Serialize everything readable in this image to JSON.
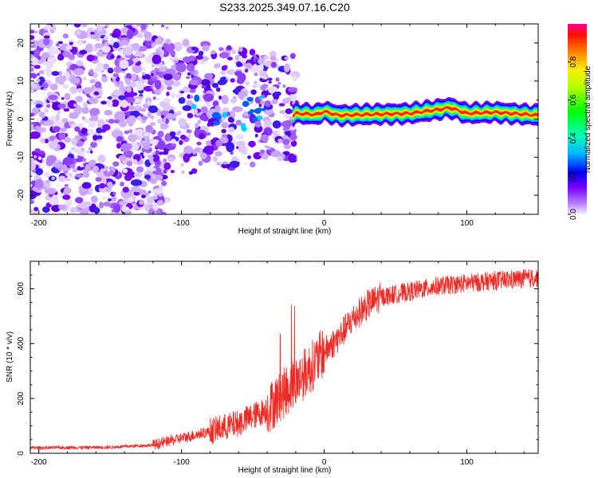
{
  "title": "S233.2025.349.07.16.C20",
  "colors": {
    "snr_line": "#ee2a24",
    "axis": "#000000",
    "background": "#ffffff"
  },
  "chart_data": [
    {
      "type": "heatmap",
      "xlabel": "Height of straight line (km)",
      "ylabel": "Frequency (Hz)",
      "xlim": [
        -206,
        150
      ],
      "ylim": [
        -25,
        25
      ],
      "xticks": [
        -200,
        -100,
        0,
        100
      ],
      "yticks": [
        -20,
        -10,
        0,
        10,
        20
      ],
      "colorbar": {
        "label": "Normalized spectral amplitude",
        "range": [
          0,
          1
        ],
        "ticks": [
          "0.0",
          "0.2",
          "0.4",
          "0.6",
          "0.8"
        ]
      },
      "ridge": {
        "description_values": "dominant frequency (Hz) vs height (km)",
        "points": [
          [
            -20,
            1.5
          ],
          [
            -5,
            1.2
          ],
          [
            0,
            2.0
          ],
          [
            10,
            1.0
          ],
          [
            30,
            1.2
          ],
          [
            60,
            1.5
          ],
          [
            80,
            2.5
          ],
          [
            88,
            3.0
          ],
          [
            100,
            1.5
          ],
          [
            120,
            1.8
          ],
          [
            150,
            1.0
          ]
        ]
      }
    },
    {
      "type": "line",
      "xlabel": "Height of straight line (km)",
      "ylabel": "SNR (10 * v/v)",
      "xlim": [
        -206,
        150
      ],
      "ylim": [
        0,
        700
      ],
      "xticks": [
        -200,
        -100,
        0,
        100
      ],
      "yticks": [
        0,
        200,
        400,
        600
      ],
      "series": [
        {
          "name": "SNR",
          "trend_points": [
            [
              -206,
              20
            ],
            [
              -150,
              22
            ],
            [
              -120,
              30
            ],
            [
              -100,
              55
            ],
            [
              -80,
              80
            ],
            [
              -60,
              110
            ],
            [
              -40,
              160
            ],
            [
              -30,
              210
            ],
            [
              -20,
              260
            ],
            [
              -10,
              310
            ],
            [
              0,
              370
            ],
            [
              10,
              420
            ],
            [
              20,
              490
            ],
            [
              30,
              540
            ],
            [
              40,
              570
            ],
            [
              60,
              590
            ],
            [
              80,
              610
            ],
            [
              100,
              620
            ],
            [
              120,
              630
            ],
            [
              150,
              640
            ]
          ]
        }
      ]
    }
  ]
}
